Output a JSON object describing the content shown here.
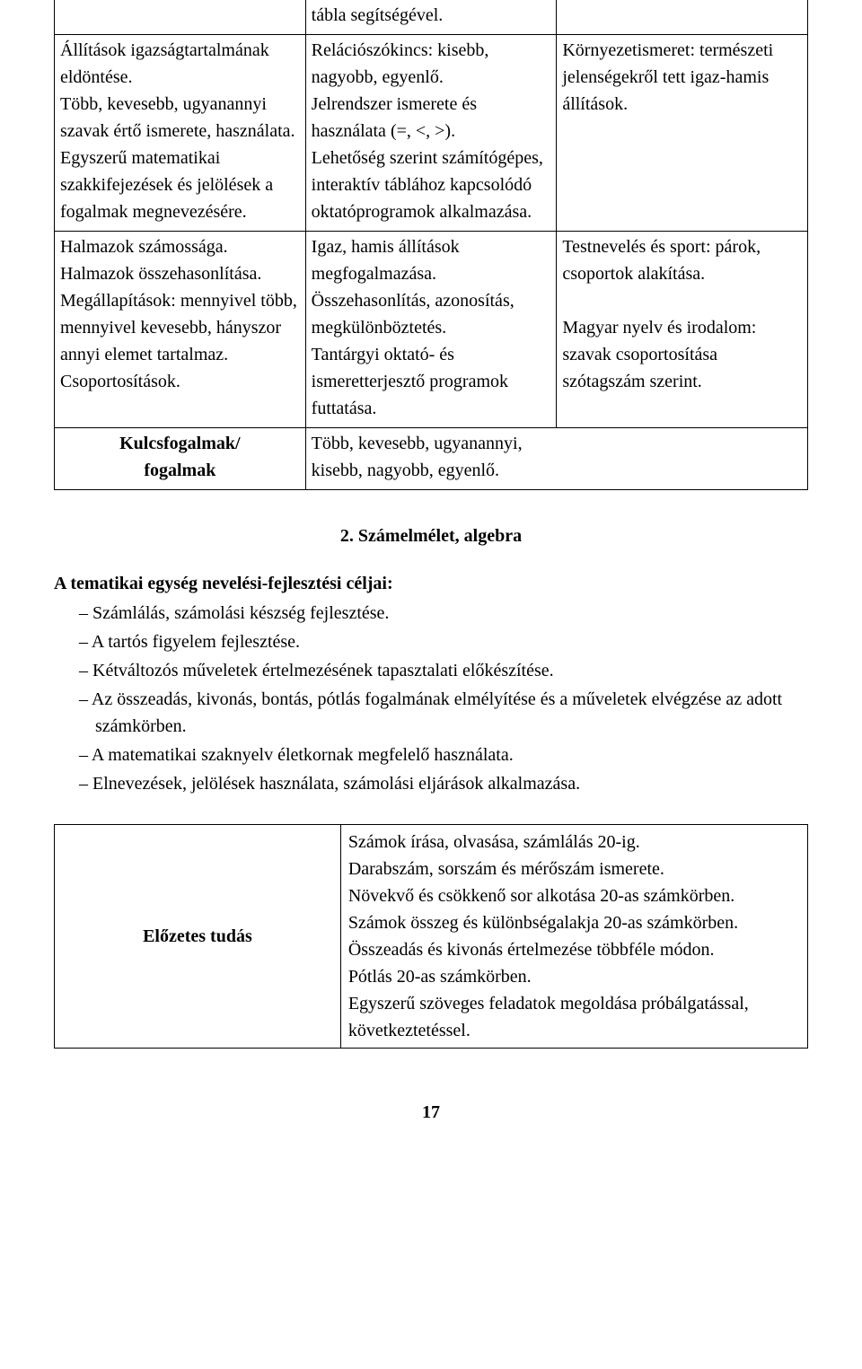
{
  "table1": {
    "row0": {
      "col2": "tábla segítségével."
    },
    "row1": {
      "col1": "Állítások igazságtartalmának eldöntése.\nTöbb, kevesebb, ugyanannyi szavak értő ismerete, használata.\nEgyszerű matematikai szakkifejezések és jelölések a fogalmak megnevezésére.",
      "col2": "Relációszókincs: kisebb, nagyobb, egyenlő.\nJelrendszer ismerete és használata (=, <, >).\nLehetőség szerint számítógépes, interaktív táblához kapcsolódó oktatóprogramok alkalmazása.",
      "col3": "Környezetismeret: természeti jelenségekről tett igaz-hamis állítások."
    },
    "row2": {
      "col1": "Halmazok számossága.\nHalmazok összehasonlítása.\nMegállapítások: mennyivel több, mennyivel kevesebb, hányszor annyi elemet tartalmaz. Csoportosítások.",
      "col2": "Igaz, hamis állítások megfogalmazása.\nÖsszehasonlítás, azonosítás, megkülönböztetés.\nTantárgyi oktató- és ismeretterjesztő programok futtatása.",
      "col3": "Testnevelés és sport: párok, csoportok alakítása.\n\nMagyar nyelv és irodalom: szavak csoportosítása szótagszám szerint."
    },
    "row3": {
      "label": "Kulcsfogalmak/\nfogalmak",
      "content": "Több, kevesebb, ugyanannyi, kisebb, nagyobb, egyenlő."
    }
  },
  "section_title": "2. Számelmélet, algebra",
  "goals_heading": "A tematikai egység nevelési-fejlesztési céljai:",
  "goals": [
    "Számlálás, számolási készség fejlesztése.",
    "A tartós figyelem fejlesztése.",
    "Kétváltozós műveletek értelmezésének tapasztalati előkészítése.",
    "Az összeadás, kivonás, bontás, pótlás fogalmának elmélyítése és a műveletek elvégzése az adott számkörben.",
    "A matematikai szaknyelv életkornak megfelelő használata.",
    "Elnevezések, jelölések használata, számolási eljárások alkalmazása."
  ],
  "table2": {
    "label": "Előzetes tudás",
    "content": "Számok írása, olvasása, számlálás 20-ig.\nDarabszám, sorszám és mérőszám ismerete.\nNövekvő és csökkenő sor alkotása 20-as számkörben.\nSzámok összeg és különbségalakja 20-as számkörben.\nÖsszeadás és kivonás értelmezése többféle módon.\nPótlás 20-as számkörben.\nEgyszerű szöveges feladatok megoldása próbálgatással, következtetéssel."
  },
  "page_number": "17"
}
